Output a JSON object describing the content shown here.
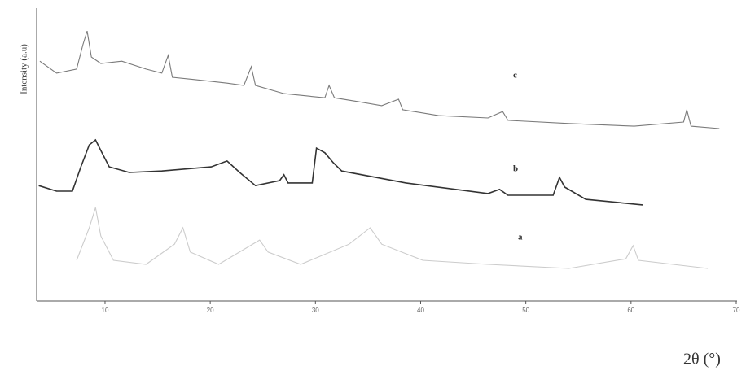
{
  "chart_data": {
    "type": "line",
    "y_label": "Intensity (a.u)",
    "x_label": "2θ (°)",
    "xlim": [
      3.5,
      70
    ],
    "xticks": [
      10,
      20,
      30,
      40,
      50,
      60,
      70
    ],
    "ylim": [
      0,
      100
    ],
    "series": [
      {
        "name": "c",
        "color": "#7a7a7a",
        "x": [
          3.8,
          5.4,
          7.3,
          7.9,
          8.3,
          8.7,
          9.6,
          11.6,
          13.9,
          15.4,
          16.0,
          16.4,
          18.5,
          21.6,
          23.2,
          23.9,
          24.3,
          27.0,
          30.9,
          31.3,
          31.8,
          34.0,
          36.3,
          37.9,
          38.3,
          41.7,
          46.4,
          47.8,
          48.3,
          54.1,
          60.3,
          65.0,
          65.3,
          65.7,
          68.4
        ],
        "values": [
          81.9,
          77.8,
          79.2,
          87.5,
          92.2,
          83.3,
          81.1,
          81.9,
          79.2,
          77.8,
          83.9,
          76.4,
          75.6,
          74.4,
          73.6,
          80,
          73.6,
          70.8,
          69.4,
          73.6,
          69.4,
          68.1,
          66.7,
          68.9,
          65.3,
          63.3,
          62.5,
          64.7,
          61.7,
          60.6,
          59.7,
          61.1,
          65.3,
          59.7,
          58.9
        ]
      },
      {
        "name": "b",
        "color": "#333333",
        "x": [
          3.7,
          5.4,
          6.9,
          7.7,
          8.5,
          9.1,
          9.6,
          10.4,
          12.3,
          15.4,
          20.1,
          21.6,
          22.8,
          24.3,
          26.6,
          27.0,
          27.4,
          29.7,
          30.1,
          30.9,
          31.7,
          32.5,
          38.6,
          46.4,
          47.5,
          48.3,
          52.6,
          53.2,
          53.7,
          55.7,
          61.1
        ],
        "values": [
          39.4,
          37.5,
          37.5,
          45.8,
          53.3,
          55,
          51.4,
          45.8,
          43.9,
          44.4,
          45.8,
          47.8,
          43.9,
          39.4,
          41.1,
          43.1,
          40.3,
          40.3,
          52.2,
          50.6,
          47.2,
          44.4,
          40.3,
          36.7,
          38.1,
          36.1,
          36.1,
          42.2,
          38.9,
          34.7,
          32.8
        ]
      },
      {
        "name": "a",
        "color": "#cccccc",
        "x": [
          7.3,
          8.5,
          9.1,
          9.6,
          10.8,
          13.9,
          16.6,
          17.4,
          18.1,
          20.8,
          24.7,
          25.5,
          28.6,
          33.2,
          35.2,
          36.3,
          40.2,
          46.4,
          54.1,
          59.5,
          60.2,
          60.7,
          67.3
        ],
        "values": [
          13.9,
          25,
          31.9,
          22.2,
          13.9,
          12.5,
          19.4,
          25,
          16.7,
          12.5,
          20.8,
          16.7,
          12.5,
          19.4,
          25,
          19.4,
          13.9,
          12.5,
          11.1,
          14.4,
          18.9,
          13.9,
          11.1
        ]
      }
    ]
  }
}
